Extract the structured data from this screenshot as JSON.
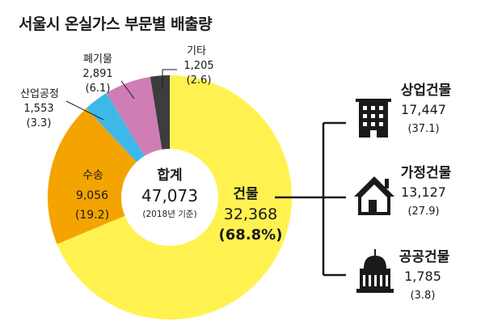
{
  "title": "서울시 온실가스 부문별 배출량",
  "colors": {
    "buildings": "#FFF250",
    "transport": "#F4A400",
    "industry": "#3DB9E9",
    "waste": "#CE7EB4",
    "other": "#3D3D3D",
    "connector": "#1a1a1a"
  },
  "center": {
    "title": "합계",
    "total": "47,073",
    "note": "(2018년 기준)"
  },
  "chart_data": {
    "type": "pie",
    "donut": true,
    "unit": "",
    "slices": [
      {
        "key": "buildings",
        "label": "건물",
        "value": 32368,
        "value_text": "32,368",
        "percent": 68.8,
        "percent_text": "(68.8%)"
      },
      {
        "key": "transport",
        "label": "수송",
        "value": 9056,
        "value_text": "9,056",
        "percent": 19.2,
        "percent_text": "(19.2)"
      },
      {
        "key": "industry",
        "label": "산업공정",
        "value": 1553,
        "value_text": "1,553",
        "percent": 3.3,
        "percent_text": "(3.3)"
      },
      {
        "key": "waste",
        "label": "폐기물",
        "value": 2891,
        "value_text": "2,891",
        "percent": 6.1,
        "percent_text": "(6.1)"
      },
      {
        "key": "other",
        "label": "기타",
        "value": 1205,
        "value_text": "1,205",
        "percent": 2.6,
        "percent_text": "(2.6)"
      }
    ],
    "breakdown": {
      "of": "건물",
      "items": [
        {
          "icon": "office-building-icon",
          "label": "상업건물",
          "value": 17447,
          "value_text": "17,447",
          "percent": 37.1,
          "percent_text": "(37.1)"
        },
        {
          "icon": "house-icon",
          "label": "가정건물",
          "value": 13127,
          "value_text": "13,127",
          "percent": 27.9,
          "percent_text": "(27.9)"
        },
        {
          "icon": "public-building-icon",
          "label": "공공건물",
          "value": 1785,
          "value_text": "1,785",
          "percent": 3.8,
          "percent_text": "(3.8)"
        }
      ]
    }
  }
}
